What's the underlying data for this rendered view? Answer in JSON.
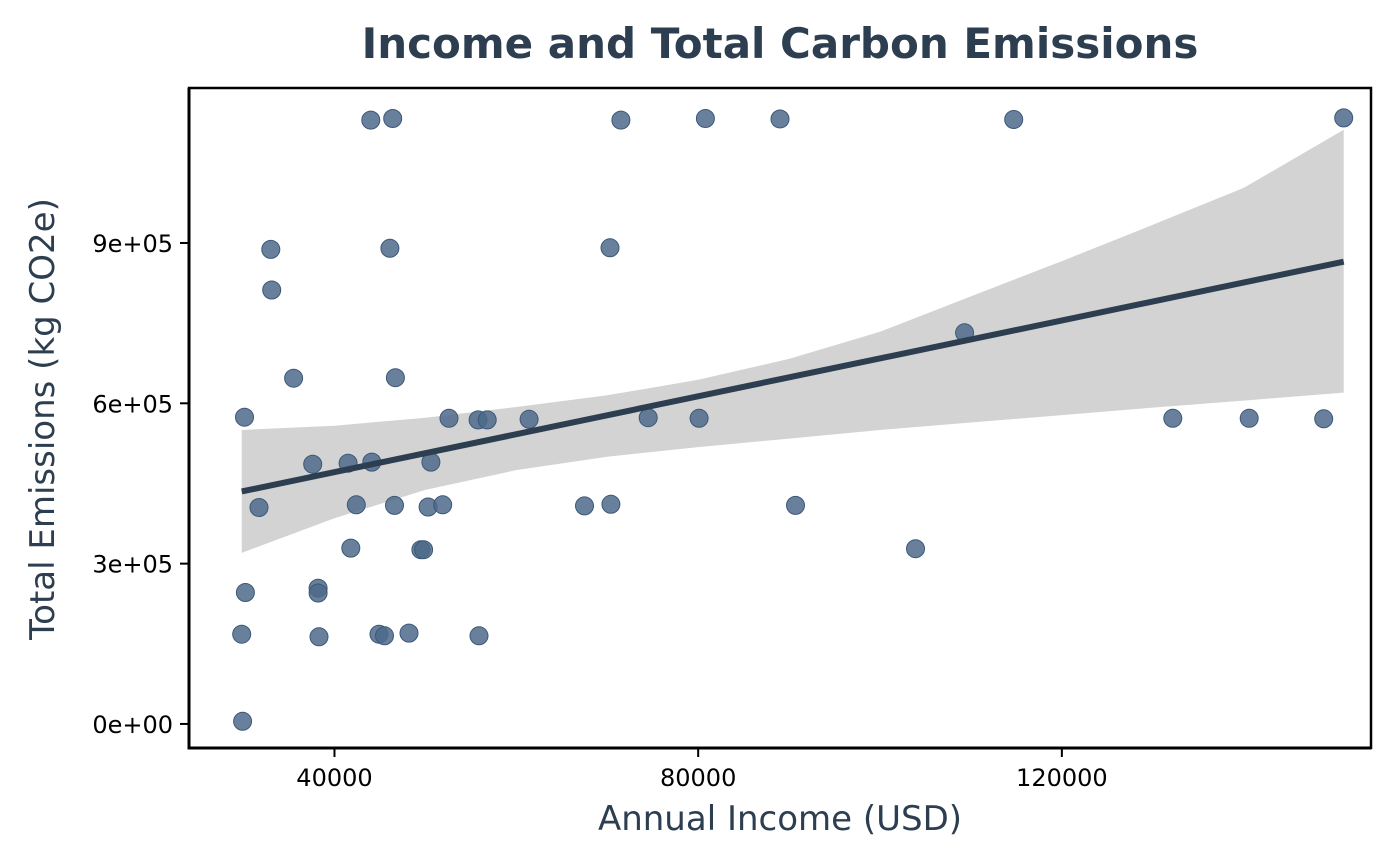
{
  "colors": {
    "title": "#2c3e50",
    "axis_title": "#2c3e50",
    "point": "#4e6a8a",
    "fit_line": "#2c3e50",
    "confidence_band": "#d3d3d3"
  },
  "chart_data": {
    "type": "scatter",
    "title": "Income and Total Carbon Emissions",
    "xlabel": "Annual Income (USD)",
    "ylabel": "Total Emissions (kg CO2e)",
    "xlim": [
      24000,
      154000
    ],
    "ylim": [
      -45000,
      1190000
    ],
    "x_ticks": [
      {
        "value": 40000,
        "label": "40000"
      },
      {
        "value": 80000,
        "label": "80000"
      },
      {
        "value": 120000,
        "label": "120000"
      }
    ],
    "y_ticks": [
      {
        "value": 0,
        "label": "0e+00"
      },
      {
        "value": 300000,
        "label": "3e+05"
      },
      {
        "value": 600000,
        "label": "6e+05"
      },
      {
        "value": 900000,
        "label": "9e+05"
      }
    ],
    "grid": false,
    "legend": "none",
    "points": [
      {
        "x": 44000,
        "y": 1130000
      },
      {
        "x": 46400,
        "y": 1133000
      },
      {
        "x": 71500,
        "y": 1130000
      },
      {
        "x": 80800,
        "y": 1133000
      },
      {
        "x": 89000,
        "y": 1132000
      },
      {
        "x": 114700,
        "y": 1131000
      },
      {
        "x": 151000,
        "y": 1134000
      },
      {
        "x": 33000,
        "y": 888000
      },
      {
        "x": 46100,
        "y": 890000
      },
      {
        "x": 70300,
        "y": 891000
      },
      {
        "x": 33100,
        "y": 812000
      },
      {
        "x": 109300,
        "y": 732000
      },
      {
        "x": 35500,
        "y": 647000
      },
      {
        "x": 46700,
        "y": 648000
      },
      {
        "x": 30100,
        "y": 574000
      },
      {
        "x": 52600,
        "y": 572000
      },
      {
        "x": 55800,
        "y": 569000
      },
      {
        "x": 56800,
        "y": 569000
      },
      {
        "x": 61400,
        "y": 570000
      },
      {
        "x": 74500,
        "y": 573000
      },
      {
        "x": 80100,
        "y": 572000
      },
      {
        "x": 132200,
        "y": 572000
      },
      {
        "x": 140600,
        "y": 572000
      },
      {
        "x": 148800,
        "y": 571000
      },
      {
        "x": 37600,
        "y": 486000
      },
      {
        "x": 41500,
        "y": 488000
      },
      {
        "x": 44100,
        "y": 490000
      },
      {
        "x": 50600,
        "y": 490000
      },
      {
        "x": 31700,
        "y": 405000
      },
      {
        "x": 42400,
        "y": 410000
      },
      {
        "x": 46600,
        "y": 409000
      },
      {
        "x": 50300,
        "y": 406000
      },
      {
        "x": 51900,
        "y": 410000
      },
      {
        "x": 67500,
        "y": 408000
      },
      {
        "x": 70400,
        "y": 411000
      },
      {
        "x": 90700,
        "y": 409000
      },
      {
        "x": 41800,
        "y": 329000
      },
      {
        "x": 49500,
        "y": 326000
      },
      {
        "x": 49800,
        "y": 326000
      },
      {
        "x": 103900,
        "y": 328000
      },
      {
        "x": 30200,
        "y": 246000
      },
      {
        "x": 38200,
        "y": 254000
      },
      {
        "x": 38200,
        "y": 245000
      },
      {
        "x": 29800,
        "y": 168000
      },
      {
        "x": 38300,
        "y": 163000
      },
      {
        "x": 44900,
        "y": 168000
      },
      {
        "x": 45500,
        "y": 165000
      },
      {
        "x": 48200,
        "y": 170000
      },
      {
        "x": 55900,
        "y": 165000
      },
      {
        "x": 29900,
        "y": 5000
      }
    ],
    "regression": {
      "x_range": [
        29800,
        151000
      ],
      "line": [
        435000,
        865000
      ],
      "band_x": [
        29800,
        40000,
        50000,
        60000,
        70000,
        80000,
        90000,
        100000,
        110000,
        120000,
        130000,
        140000,
        151000
      ],
      "band_lower": [
        320000,
        385000,
        438000,
        475000,
        500000,
        518000,
        534000,
        550000,
        564000,
        578000,
        592000,
        605000,
        620000
      ],
      "band_upper": [
        550000,
        558000,
        573000,
        593000,
        615000,
        644000,
        683000,
        734000,
        800000,
        866000,
        934000,
        1003000,
        1112000
      ]
    }
  }
}
